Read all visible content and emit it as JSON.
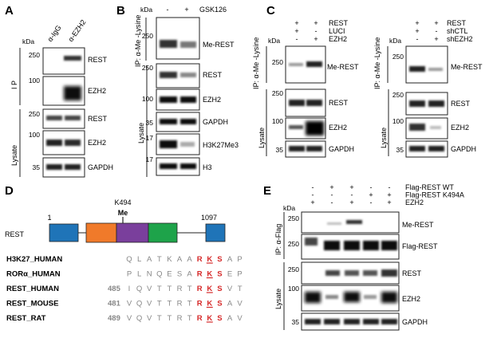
{
  "panels": {
    "A": {
      "label": "A",
      "kda": "kDa",
      "lanes": [
        "α-IgG",
        "α-EZH2"
      ],
      "sections": [
        "I P",
        "Lysate"
      ],
      "blots": [
        {
          "mw": "250",
          "label": "REST"
        },
        {
          "mw": "100",
          "label": "EZH2"
        },
        {
          "mw": "250",
          "label": "REST"
        },
        {
          "mw": "100",
          "label": "EZH2"
        },
        {
          "mw": "35",
          "label": "GAPDH"
        }
      ]
    },
    "B": {
      "label": "B",
      "kda": "kDa",
      "treatment": "GSK126",
      "lanes": [
        "-",
        "+"
      ],
      "sections": [
        "IP: α-Me -Lysine",
        "Lysate"
      ],
      "blots": [
        {
          "mw": "250",
          "label": "Me-REST"
        },
        {
          "mw": "250",
          "label": "REST"
        },
        {
          "mw": "100",
          "label": "EZH2"
        },
        {
          "mw": "35",
          "label": "GAPDH"
        },
        {
          "mw": "17",
          "label": "H3K27Me3"
        },
        {
          "mw": "17",
          "label": "H3"
        }
      ]
    },
    "C": {
      "label": "C",
      "left": {
        "conditions": [
          {
            "name": "REST",
            "signs": [
              "+",
              "+"
            ]
          },
          {
            "name": "LUCI",
            "signs": [
              "+",
              "-"
            ]
          },
          {
            "name": "EZH2",
            "signs": [
              "-",
              "+"
            ]
          }
        ],
        "kda": "kDa",
        "sections": [
          "IP: α-Me -Lysine",
          "Lysate"
        ],
        "blots": [
          {
            "mw": "250",
            "label": "Me-REST"
          },
          {
            "mw": "250",
            "label": "REST"
          },
          {
            "mw": "100",
            "label": "EZH2"
          },
          {
            "mw": "35",
            "label": "GAPDH"
          }
        ]
      },
      "right": {
        "conditions": [
          {
            "name": "REST",
            "signs": [
              "+",
              "+"
            ]
          },
          {
            "name": "shCTL",
            "signs": [
              "+",
              "-"
            ]
          },
          {
            "name": "shEZH2",
            "signs": [
              "-",
              "+"
            ]
          }
        ],
        "kda": "kDa",
        "sections": [
          "IP: α-Me -Lysine",
          "Lysate"
        ],
        "blots": [
          {
            "mw": "250",
            "label": "Me-REST"
          },
          {
            "mw": "250",
            "label": "REST"
          },
          {
            "mw": "100",
            "label": "EZH2"
          },
          {
            "mw": "35",
            "label": "GAPDH"
          }
        ]
      }
    },
    "D": {
      "label": "D",
      "site": "K494",
      "mod": "Me",
      "protein": "REST",
      "start": "1",
      "end": "1097",
      "domain_colors": [
        "#1f74b8",
        "#f07a2a",
        "#7a3f9c",
        "#1ea34a",
        "#1f74b8"
      ],
      "alignment": [
        {
          "name": "H3K27_HUMAN",
          "num": "",
          "residues": [
            "Q",
            "L",
            "A",
            "T",
            "K",
            "A",
            "A",
            "R",
            "K",
            "S",
            "A",
            "P"
          ]
        },
        {
          "name": "RORα_HUMAN",
          "num": "",
          "residues": [
            "P",
            "L",
            "N",
            "Q",
            "E",
            "S",
            "A",
            "R",
            "K",
            "S",
            "E",
            "P"
          ]
        },
        {
          "name": "REST_HUMAN",
          "num": "485",
          "residues": [
            "I",
            "Q",
            "V",
            "T",
            "T",
            "R",
            "T",
            "R",
            "K",
            "S",
            "V",
            "T"
          ]
        },
        {
          "name": "REST_MOUSE",
          "num": "481",
          "residues": [
            "V",
            "Q",
            "V",
            "T",
            "T",
            "R",
            "T",
            "R",
            "K",
            "S",
            "A",
            "V"
          ]
        },
        {
          "name": "REST_RAT",
          "num": "489",
          "residues": [
            "V",
            "Q",
            "V",
            "T",
            "T",
            "R",
            "T",
            "R",
            "K",
            "S",
            "A",
            "V"
          ]
        }
      ]
    },
    "E": {
      "label": "E",
      "kda": "kDa",
      "conditions": [
        {
          "name": "Flag-REST WT",
          "signs": [
            "-",
            "+",
            "+",
            "-",
            "-"
          ]
        },
        {
          "name": "Flag-REST K494A",
          "signs": [
            "-",
            "-",
            "-",
            "+",
            "+"
          ]
        },
        {
          "name": "EZH2",
          "signs": [
            "+",
            "-",
            "+",
            "-",
            "+"
          ]
        }
      ],
      "sections": [
        "IP: α-Flag",
        "Lysate"
      ],
      "blots": [
        {
          "mw": "250",
          "label": "Me-REST"
        },
        {
          "mw": "250",
          "label": "Flag-REST"
        },
        {
          "mw": "250",
          "label": "REST"
        },
        {
          "mw": "100",
          "label": "EZH2"
        },
        {
          "mw": "35",
          "label": "GAPDH"
        }
      ]
    }
  }
}
